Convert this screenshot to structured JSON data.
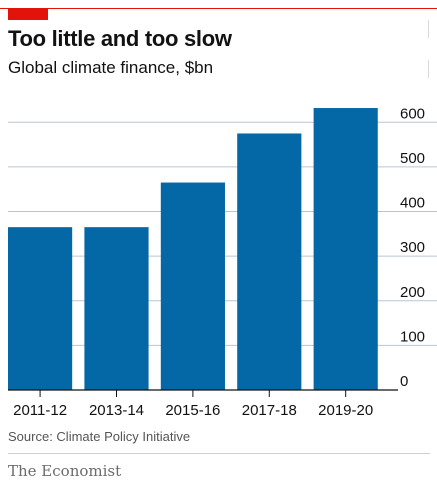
{
  "title": "Too little and too slow",
  "subtitle": "Global climate finance, $bn",
  "source": "Source: Climate Policy Initiative",
  "brand": "The Economist",
  "colors": {
    "bar": "#0568a6",
    "accent": "#e3120b",
    "grid": "#b7c6d1"
  },
  "chart_data": {
    "type": "bar",
    "categories": [
      "2011-12",
      "2013-14",
      "2015-16",
      "2017-18",
      "2019-20"
    ],
    "values": [
      365,
      365,
      465,
      575,
      632
    ],
    "title": "Too little and too slow",
    "subtitle": "Global climate finance, $bn",
    "xlabel": "",
    "ylabel": "",
    "ylim": [
      0,
      650
    ],
    "yticks": [
      0,
      100,
      200,
      300,
      400,
      500,
      600
    ],
    "ytick_labels": [
      "0",
      "100",
      "200",
      "300",
      "400",
      "500",
      "600"
    ],
    "grid": true,
    "axis_side": "right"
  }
}
